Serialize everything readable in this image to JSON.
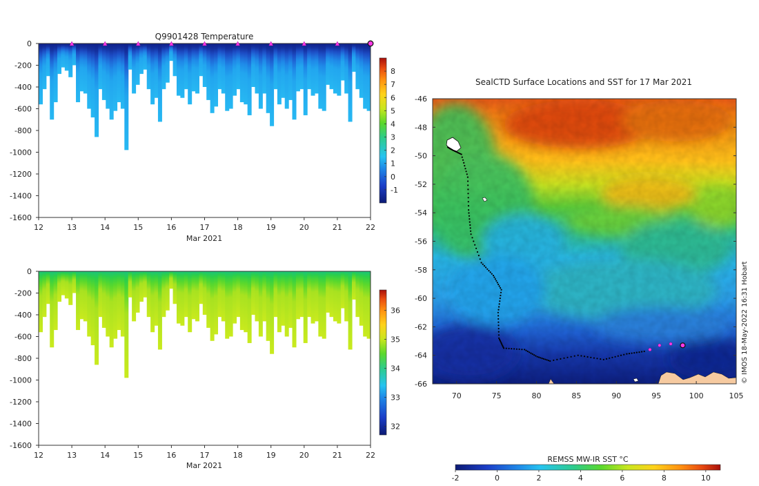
{
  "chart_data": [
    {
      "type": "heatmap",
      "id": "temperature-section",
      "title": "Q9901428  Temperature",
      "xlabel": "Mar 2021",
      "ylabel": "",
      "x_ticks": [
        "12",
        "13",
        "14",
        "15",
        "16",
        "17",
        "18",
        "19",
        "20",
        "21",
        "22"
      ],
      "y_ticks": [
        "0",
        "-200",
        "-400",
        "-600",
        "-800",
        "-1000",
        "-1200",
        "-1400",
        "-1600"
      ],
      "xlim": [
        12,
        22
      ],
      "ylim": [
        -1600,
        0
      ],
      "colorbar": {
        "min": -2,
        "max": 9,
        "ticks": [
          "-1",
          "0",
          "1",
          "2",
          "3",
          "4",
          "5",
          "6",
          "7",
          "8"
        ]
      },
      "profile_markers_day": [
        13,
        14,
        15,
        16,
        17,
        18,
        19,
        20,
        21
      ],
      "current_marker_day": 22,
      "profile_depths_m": [
        -560,
        -420,
        -300,
        -700,
        -540,
        -280,
        -220,
        -250,
        -310,
        -200,
        -540,
        -440,
        -460,
        -600,
        -680,
        -860,
        -420,
        -520,
        -600,
        -700,
        -620,
        -540,
        -600,
        -980,
        -240,
        -460,
        -380,
        -280,
        -240,
        -420,
        -560,
        -500,
        -720,
        -420,
        -360,
        -160,
        -300,
        -480,
        -500,
        -420,
        -560,
        -440,
        -460,
        -300,
        -400,
        -520,
        -640,
        -580,
        -420,
        -460,
        -620,
        -600,
        -480,
        -420,
        -540,
        -560,
        -660,
        -400,
        -460,
        -600,
        -460,
        -640,
        -760,
        -420,
        -560,
        -500,
        -600,
        -520,
        -700,
        -440,
        -420,
        -660,
        -420,
        -480,
        -460,
        -600,
        -620,
        -380,
        -420,
        -460,
        -480,
        -340,
        -460,
        -720,
        -260,
        -420,
        -500,
        -600,
        -620
      ]
    },
    {
      "type": "heatmap",
      "id": "salinity-section",
      "title": "",
      "xlabel": "Mar 2021",
      "x_ticks": [
        "12",
        "13",
        "14",
        "15",
        "16",
        "17",
        "18",
        "19",
        "20",
        "21",
        "22"
      ],
      "y_ticks": [
        "0",
        "-200",
        "-400",
        "-600",
        "-800",
        "-1000",
        "-1200",
        "-1400",
        "-1600"
      ],
      "xlim": [
        12,
        22
      ],
      "ylim": [
        -1600,
        0
      ],
      "colorbar": {
        "min": 31.7,
        "max": 36.7,
        "ticks": [
          "32",
          "33",
          "34",
          "35",
          "36"
        ]
      }
    },
    {
      "type": "map",
      "id": "sst-map",
      "title": "SealCTD Surface Locations and SST for 17 Mar 2021",
      "x_ticks": [
        "70",
        "75",
        "80",
        "85",
        "90",
        "95",
        "100",
        "105"
      ],
      "y_ticks": [
        "-46",
        "-48",
        "-50",
        "-52",
        "-54",
        "-56",
        "-58",
        "-60",
        "-62",
        "-64",
        "-66"
      ],
      "xlim": [
        67,
        105
      ],
      "ylim": [
        -66,
        -46
      ],
      "track": [
        [
          68.9,
          -49.4
        ],
        [
          69.5,
          -49.6
        ],
        [
          70.6,
          -49.9
        ],
        [
          71.4,
          -51.5
        ],
        [
          71.5,
          -53.8
        ],
        [
          71.8,
          -55.5
        ],
        [
          73.1,
          -57.5
        ],
        [
          74.6,
          -58.4
        ],
        [
          75.6,
          -59.4
        ],
        [
          75.2,
          -61.0
        ],
        [
          75.3,
          -62.8
        ],
        [
          75.9,
          -63.5
        ],
        [
          78.5,
          -63.6
        ],
        [
          80.1,
          -64.1
        ],
        [
          81.7,
          -64.4
        ],
        [
          85.2,
          -64.0
        ],
        [
          88.4,
          -64.3
        ],
        [
          91.3,
          -63.9
        ],
        [
          93.8,
          -63.7
        ]
      ],
      "recent_track": [
        [
          94.2,
          -63.6
        ],
        [
          95.4,
          -63.3
        ],
        [
          96.8,
          -63.2
        ]
      ],
      "current_position": [
        98.3,
        -63.3
      ],
      "colorbar": {
        "label": "REMSS MW-IR SST °C",
        "min": -2,
        "max": 10.7,
        "ticks": [
          "-2",
          "0",
          "2",
          "4",
          "6",
          "8",
          "10"
        ]
      },
      "credit": "© IMOS 18-May-2022 16:31 Hobart"
    }
  ]
}
